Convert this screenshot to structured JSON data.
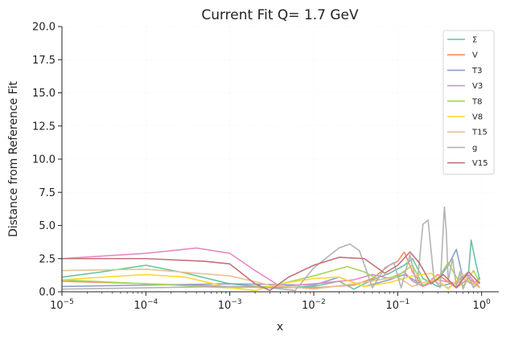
{
  "chart_data": {
    "type": "line",
    "title": "Current Fit Q= 1.7 GeV",
    "xlabel": "x",
    "ylabel": "Distance from Reference Fit",
    "xscale": "log",
    "xlim": [
      1e-05,
      1.6
    ],
    "ylim": [
      0,
      20
    ],
    "xticks": [
      {
        "value": 1e-05,
        "base": "10",
        "exp": "−5"
      },
      {
        "value": 0.0001,
        "base": "10",
        "exp": "−4"
      },
      {
        "value": 0.001,
        "base": "10",
        "exp": "−3"
      },
      {
        "value": 0.01,
        "base": "10",
        "exp": "−2"
      },
      {
        "value": 0.1,
        "base": "10",
        "exp": "−1"
      },
      {
        "value": 1,
        "base": "10",
        "exp": "0"
      }
    ],
    "yticks": [
      {
        "value": 0,
        "label": "0.0"
      },
      {
        "value": 2.5,
        "label": "2.5"
      },
      {
        "value": 5,
        "label": "5.0"
      },
      {
        "value": 7.5,
        "label": "7.5"
      },
      {
        "value": 10,
        "label": "10.0"
      },
      {
        "value": 12.5,
        "label": "12.5"
      },
      {
        "value": 15,
        "label": "15.0"
      },
      {
        "value": 17.5,
        "label": "17.5"
      },
      {
        "value": 20,
        "label": "20.0"
      }
    ],
    "grid": "faint",
    "legend_position": "top-right",
    "series": [
      {
        "name": "Σ",
        "color": "#66c2a5",
        "x": [
          1e-05,
          3e-05,
          0.0001,
          0.0003,
          0.001,
          0.003,
          0.01,
          0.02,
          0.03,
          0.05,
          0.08,
          0.12,
          0.15,
          0.2,
          0.3,
          0.5,
          0.7,
          0.75,
          0.85,
          0.95
        ],
        "y": [
          1.1,
          1.5,
          2.0,
          1.4,
          0.6,
          0.3,
          0.4,
          0.8,
          0.2,
          0.9,
          1.4,
          2.0,
          2.5,
          1.0,
          0.4,
          0.7,
          1.5,
          3.9,
          2.2,
          0.9
        ]
      },
      {
        "name": "V",
        "color": "#fc8d62",
        "x": [
          1e-05,
          0.0001,
          0.001,
          0.01,
          0.03,
          0.05,
          0.08,
          0.1,
          0.12,
          0.15,
          0.2,
          0.3,
          0.5,
          0.7,
          0.9,
          0.95
        ],
        "y": [
          0.8,
          0.6,
          0.4,
          0.3,
          0.5,
          1.0,
          2.0,
          2.3,
          3.0,
          1.5,
          0.4,
          1.3,
          0.3,
          1.0,
          0.5,
          0.3
        ]
      },
      {
        "name": "T3",
        "color": "#8da0cb",
        "x": [
          1e-05,
          0.0001,
          0.001,
          0.01,
          0.02,
          0.04,
          0.08,
          0.12,
          0.2,
          0.3,
          0.4,
          0.5,
          0.6,
          0.8,
          0.95
        ],
        "y": [
          0.4,
          0.5,
          0.6,
          0.5,
          1.1,
          0.4,
          0.9,
          1.3,
          0.5,
          0.9,
          2.0,
          3.2,
          1.0,
          0.5,
          1.1
        ]
      },
      {
        "name": "V3",
        "color": "#e78ac3",
        "x": [
          1e-05,
          0.0001,
          0.0004,
          0.001,
          0.002,
          0.004,
          0.01,
          0.03,
          0.05,
          0.08,
          0.12,
          0.15,
          0.2,
          0.3,
          0.5,
          0.7,
          0.9
        ],
        "y": [
          2.5,
          2.9,
          3.3,
          2.9,
          1.6,
          0.4,
          0.6,
          0.9,
          1.3,
          1.0,
          1.5,
          0.8,
          0.4,
          0.9,
          0.6,
          1.3,
          0.4
        ]
      },
      {
        "name": "T8",
        "color": "#a6d854",
        "x": [
          1e-05,
          0.0001,
          0.001,
          0.003,
          0.01,
          0.025,
          0.04,
          0.06,
          0.1,
          0.15,
          0.2,
          0.3,
          0.4,
          0.5,
          0.6,
          0.8,
          0.95
        ],
        "y": [
          0.9,
          0.6,
          0.3,
          0.4,
          1.2,
          1.9,
          1.5,
          0.9,
          1.2,
          2.0,
          0.5,
          1.0,
          2.2,
          1.1,
          0.4,
          1.6,
          0.7
        ]
      },
      {
        "name": "V8",
        "color": "#ffd92f",
        "x": [
          1e-05,
          3e-05,
          0.0001,
          0.0003,
          0.001,
          0.002,
          0.004,
          0.01,
          0.02,
          0.04,
          0.08,
          0.15,
          0.25,
          0.4,
          0.6,
          0.8,
          0.95
        ],
        "y": [
          0.9,
          1.1,
          1.3,
          1.1,
          0.3,
          0.1,
          0.6,
          1.0,
          1.1,
          0.4,
          0.7,
          1.2,
          1.4,
          0.2,
          1.3,
          0.5,
          0.9
        ]
      },
      {
        "name": "T15",
        "color": "#e5c494",
        "x": [
          1e-05,
          0.0001,
          0.001,
          0.003,
          0.01,
          0.03,
          0.06,
          0.1,
          0.15,
          0.25,
          0.4,
          0.6,
          0.8,
          0.95
        ],
        "y": [
          1.6,
          1.7,
          1.2,
          0.5,
          0.2,
          0.6,
          0.9,
          1.1,
          0.4,
          0.9,
          0.3,
          1.0,
          0.6,
          0.3
        ]
      },
      {
        "name": "g",
        "color": "#b3b3b3",
        "x": [
          1e-05,
          0.0001,
          0.001,
          0.003,
          0.006,
          0.01,
          0.02,
          0.027,
          0.035,
          0.05,
          0.07,
          0.09,
          0.11,
          0.14,
          0.17,
          0.2,
          0.23,
          0.27,
          0.32,
          0.36,
          0.38,
          0.4,
          0.45,
          0.5,
          0.55,
          0.6,
          0.7,
          0.8,
          0.95
        ],
        "y": [
          0.2,
          0.3,
          0.4,
          0.3,
          0.1,
          1.8,
          3.3,
          3.6,
          3.1,
          0.3,
          1.8,
          2.2,
          0.3,
          2.8,
          0.5,
          5.1,
          5.4,
          1.0,
          0.3,
          6.4,
          4.5,
          0.8,
          2.5,
          0.4,
          1.5,
          0.2,
          1.2,
          0.3,
          0.8
        ]
      },
      {
        "name": "V15",
        "color": "#c4707a",
        "x": [
          1e-05,
          0.0001,
          0.0005,
          0.001,
          0.002,
          0.003,
          0.005,
          0.01,
          0.02,
          0.04,
          0.07,
          0.1,
          0.14,
          0.18,
          0.25,
          0.35,
          0.5,
          0.7,
          0.95
        ],
        "y": [
          2.5,
          2.5,
          2.3,
          2.1,
          0.6,
          0.1,
          1.1,
          2.0,
          2.6,
          2.5,
          1.4,
          2.0,
          3.0,
          2.2,
          0.6,
          1.3,
          0.3,
          1.5,
          0.6
        ]
      }
    ]
  }
}
